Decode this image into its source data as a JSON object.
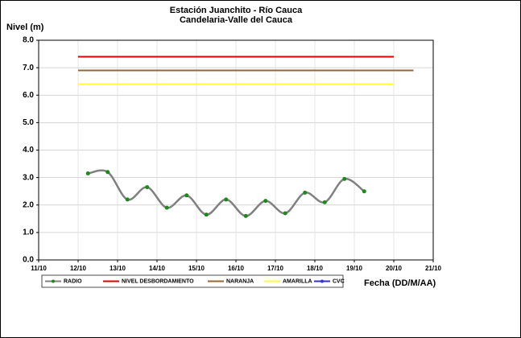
{
  "chart_data": {
    "type": "line",
    "title": "Estación Juanchito - Río Cauca",
    "subtitle": "Candelaria-Valle del Cauca",
    "ylabel": "Nivel (m)",
    "xlabel": "Fecha (DD/M/AA)",
    "xlim": [
      11,
      21
    ],
    "ylim": [
      0,
      8
    ],
    "xticks": [
      {
        "value": 11,
        "label": "11/10"
      },
      {
        "value": 12,
        "label": "12/10"
      },
      {
        "value": 13,
        "label": "13/10"
      },
      {
        "value": 14,
        "label": "14/10"
      },
      {
        "value": 15,
        "label": "15/10"
      },
      {
        "value": 16,
        "label": "16/10"
      },
      {
        "value": 17,
        "label": "17/10"
      },
      {
        "value": 18,
        "label": "18/10"
      },
      {
        "value": 19,
        "label": "19/10"
      },
      {
        "value": 20,
        "label": "20/10"
      },
      {
        "value": 21,
        "label": "21/10"
      }
    ],
    "yticks": [
      {
        "value": 0,
        "label": "0.0"
      },
      {
        "value": 1,
        "label": "1.0"
      },
      {
        "value": 2,
        "label": "2.0"
      },
      {
        "value": 3,
        "label": "3.0"
      },
      {
        "value": 4,
        "label": "4.0"
      },
      {
        "value": 5,
        "label": "5.0"
      },
      {
        "value": 6,
        "label": "6.0"
      },
      {
        "value": 7,
        "label": "7.0"
      },
      {
        "value": 8,
        "label": "8.0"
      }
    ],
    "grid": true,
    "legend": "bottom",
    "series": [
      {
        "name": "RADIO",
        "color": "#808080",
        "marker_color": "#1a8a1a",
        "smooth": true,
        "x": [
          12.25,
          12.75,
          13.25,
          13.75,
          14.25,
          14.75,
          15.25,
          15.75,
          16.25,
          16.75,
          17.25,
          17.75,
          18.25,
          18.75,
          19.25
        ],
        "values": [
          3.15,
          3.2,
          2.2,
          2.65,
          1.9,
          2.35,
          1.65,
          2.2,
          1.6,
          2.15,
          1.7,
          2.45,
          2.1,
          2.95,
          2.5
        ]
      },
      {
        "name": "NIVEL DESBORDAMIENTO",
        "color": "#e00000",
        "x": [
          12,
          20
        ],
        "values": [
          7.4,
          7.4
        ]
      },
      {
        "name": "NARANJA",
        "color": "#996633",
        "x": [
          12,
          20.5
        ],
        "values": [
          6.9,
          6.9
        ]
      },
      {
        "name": "AMARILLA",
        "color": "#ffff33",
        "x": [
          12,
          20
        ],
        "values": [
          6.4,
          6.4
        ]
      },
      {
        "name": "CVC",
        "color": "#3333cc",
        "marker_color": "#3333cc",
        "x": [],
        "values": []
      }
    ]
  }
}
